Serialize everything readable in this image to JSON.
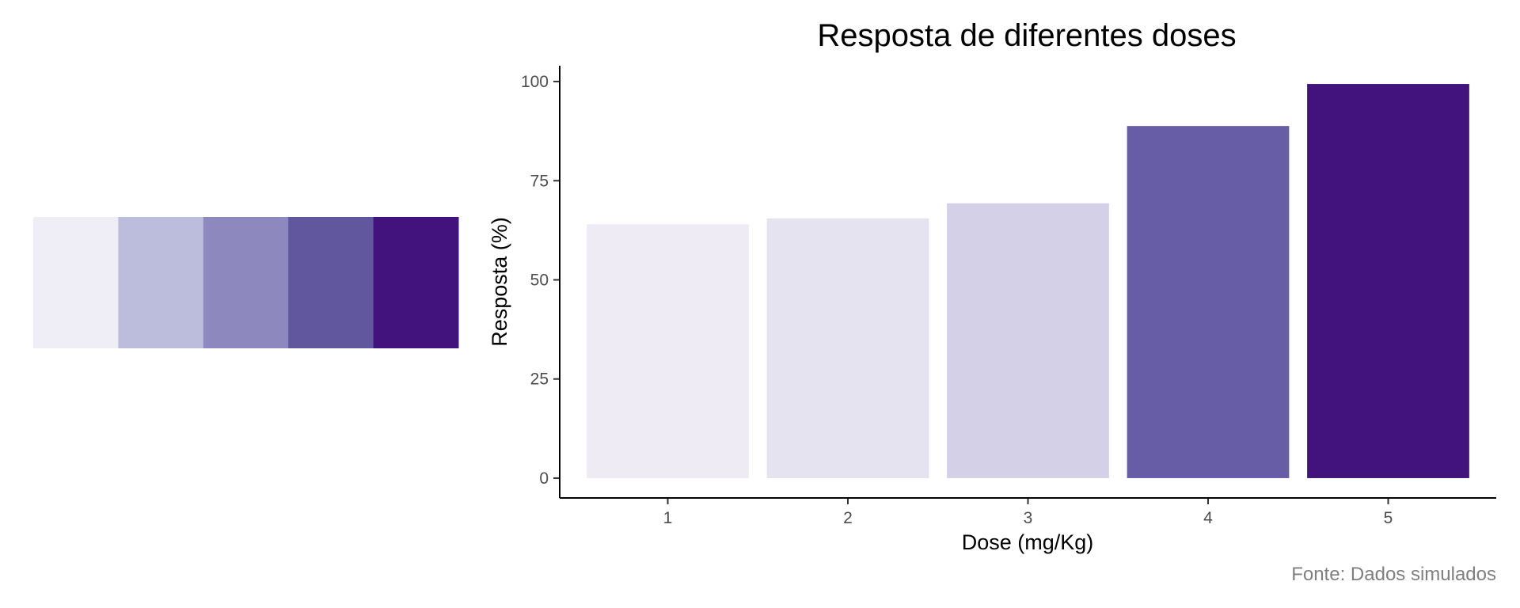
{
  "palette": {
    "swatches": [
      "#EFEDF5",
      "#BCBDDC",
      "#8D89BE",
      "#61579F",
      "#42137C"
    ]
  },
  "chart_data": {
    "type": "bar",
    "title": "Resposta de diferentes doses",
    "xlabel": "Dose (mg/Kg)",
    "ylabel": "Resposta (%)",
    "caption": "Fonte: Dados simulados",
    "categories": [
      "1",
      "2",
      "3",
      "4",
      "5"
    ],
    "values": [
      64,
      65.5,
      69.3,
      88.8,
      99.4
    ],
    "colors": [
      "#EEEBF5",
      "#E5E3F0",
      "#D4D0E7",
      "#675DA6",
      "#42137C"
    ],
    "ylim": [
      -5,
      104
    ],
    "yticks": [
      0,
      25,
      50,
      75,
      100
    ],
    "grid": false,
    "legend": "none"
  }
}
